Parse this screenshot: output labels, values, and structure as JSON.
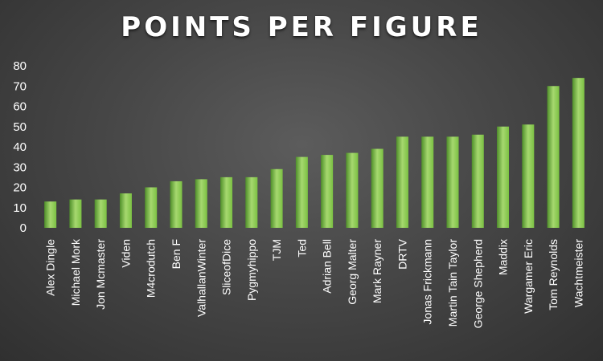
{
  "chart_data": {
    "type": "bar",
    "title": "Points per Figure",
    "xlabel": "",
    "ylabel": "",
    "ylim": [
      0,
      80
    ],
    "yticks": [
      0,
      10,
      20,
      30,
      40,
      50,
      60,
      70,
      80
    ],
    "grid": false,
    "legend": "none",
    "bar_color": "#7bc043",
    "bar_color_light": "#a6d86f",
    "bar_color_dark": "#4f8f2a",
    "categories": [
      "Alex Dingle",
      "Michael Mork",
      "Jon Mcmaster",
      "Viden",
      "M4crodutch",
      "Ben F",
      "ValhallanWinter",
      "SliceofDice",
      "Pygmyhippo",
      "TJM",
      "Ted",
      "Adrian Bell",
      "Georg Malter",
      "Mark Rayner",
      "DRTV",
      "Jonas Frickmann",
      "Martin Tain Taylor",
      "George Shepherd",
      "Maddix",
      "Wargamer Eric",
      "Tom Reynolds",
      "Wachtmeister"
    ],
    "values": [
      13,
      14,
      14,
      17,
      20,
      23,
      24,
      25,
      25,
      29,
      35,
      36,
      37,
      39,
      45,
      45,
      45,
      46,
      50,
      51,
      70,
      74
    ]
  }
}
